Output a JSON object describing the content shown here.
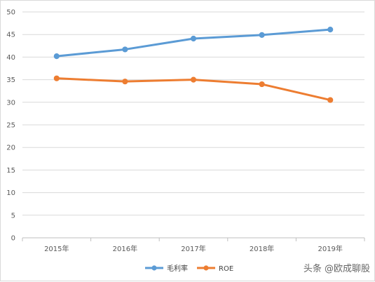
{
  "chart_data": {
    "type": "line",
    "categories": [
      "2015年",
      "2016年",
      "2017年",
      "2018年",
      "2019年"
    ],
    "series": [
      {
        "name": "毛利率",
        "color": "#5b9bd5",
        "values": [
          40.2,
          41.7,
          44.1,
          44.9,
          46.1
        ]
      },
      {
        "name": "ROE",
        "color": "#ed7d31",
        "values": [
          35.3,
          34.6,
          35.0,
          34.0,
          30.5
        ]
      }
    ],
    "ylim": [
      0,
      50
    ],
    "yticks": [
      0,
      5,
      10,
      15,
      20,
      25,
      30,
      35,
      40,
      45,
      50
    ],
    "grid": true,
    "legend_position": "bottom",
    "title": "",
    "xlabel": "",
    "ylabel": ""
  },
  "watermark": "头条 @欧成聊股"
}
